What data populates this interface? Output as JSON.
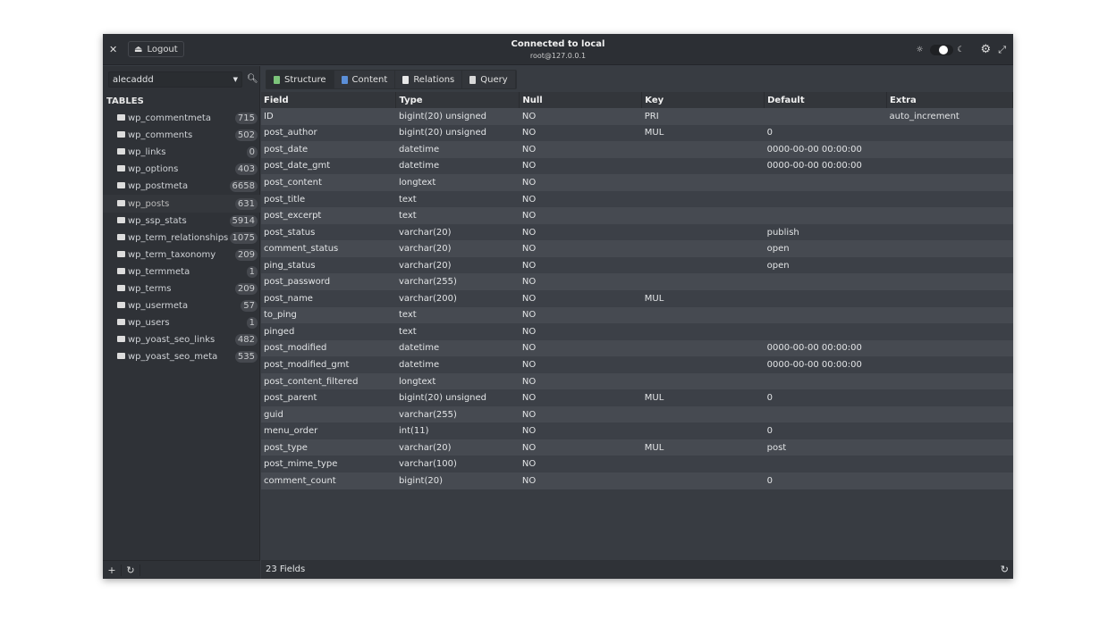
{
  "titlebar": {
    "close_icon": "close-icon",
    "logout_label": "Logout",
    "title": "Connected to local",
    "subtitle": "root@127.0.0.1"
  },
  "sidebar": {
    "database": "alecaddd",
    "tables_heading": "TABLES",
    "selected": "wp_posts",
    "tables": [
      {
        "name": "wp_commentmeta",
        "count": "715"
      },
      {
        "name": "wp_comments",
        "count": "502"
      },
      {
        "name": "wp_links",
        "count": "0"
      },
      {
        "name": "wp_options",
        "count": "403"
      },
      {
        "name": "wp_postmeta",
        "count": "6658"
      },
      {
        "name": "wp_posts",
        "count": "631"
      },
      {
        "name": "wp_ssp_stats",
        "count": "5914"
      },
      {
        "name": "wp_term_relationships",
        "count": "1075"
      },
      {
        "name": "wp_term_taxonomy",
        "count": "209"
      },
      {
        "name": "wp_termmeta",
        "count": "1"
      },
      {
        "name": "wp_terms",
        "count": "209"
      },
      {
        "name": "wp_usermeta",
        "count": "57"
      },
      {
        "name": "wp_users",
        "count": "1"
      },
      {
        "name": "wp_yoast_seo_links",
        "count": "482"
      },
      {
        "name": "wp_yoast_seo_meta",
        "count": "535"
      }
    ]
  },
  "tabs": [
    {
      "label": "Structure",
      "color": "#7cc47a"
    },
    {
      "label": "Content",
      "color": "#5b8fd8"
    },
    {
      "label": "Relations",
      "color": "#e8e8e8"
    },
    {
      "label": "Query",
      "color": "#d8d8d8"
    }
  ],
  "active_tab": "Structure",
  "columns": [
    "Field",
    "Type",
    "Null",
    "Key",
    "Default",
    "Extra"
  ],
  "rows": [
    [
      "ID",
      "bigint(20) unsigned",
      "NO",
      "PRI",
      "",
      "auto_increment"
    ],
    [
      "post_author",
      "bigint(20) unsigned",
      "NO",
      "MUL",
      "0",
      ""
    ],
    [
      "post_date",
      "datetime",
      "NO",
      "",
      "0000-00-00 00:00:00",
      ""
    ],
    [
      "post_date_gmt",
      "datetime",
      "NO",
      "",
      "0000-00-00 00:00:00",
      ""
    ],
    [
      "post_content",
      "longtext",
      "NO",
      "",
      "",
      ""
    ],
    [
      "post_title",
      "text",
      "NO",
      "",
      "",
      ""
    ],
    [
      "post_excerpt",
      "text",
      "NO",
      "",
      "",
      ""
    ],
    [
      "post_status",
      "varchar(20)",
      "NO",
      "",
      "publish",
      ""
    ],
    [
      "comment_status",
      "varchar(20)",
      "NO",
      "",
      "open",
      ""
    ],
    [
      "ping_status",
      "varchar(20)",
      "NO",
      "",
      "open",
      ""
    ],
    [
      "post_password",
      "varchar(255)",
      "NO",
      "",
      "",
      ""
    ],
    [
      "post_name",
      "varchar(200)",
      "NO",
      "MUL",
      "",
      ""
    ],
    [
      "to_ping",
      "text",
      "NO",
      "",
      "",
      ""
    ],
    [
      "pinged",
      "text",
      "NO",
      "",
      "",
      ""
    ],
    [
      "post_modified",
      "datetime",
      "NO",
      "",
      "0000-00-00 00:00:00",
      ""
    ],
    [
      "post_modified_gmt",
      "datetime",
      "NO",
      "",
      "0000-00-00 00:00:00",
      ""
    ],
    [
      "post_content_filtered",
      "longtext",
      "NO",
      "",
      "",
      ""
    ],
    [
      "post_parent",
      "bigint(20) unsigned",
      "NO",
      "MUL",
      "0",
      ""
    ],
    [
      "guid",
      "varchar(255)",
      "NO",
      "",
      "",
      ""
    ],
    [
      "menu_order",
      "int(11)",
      "NO",
      "",
      "0",
      ""
    ],
    [
      "post_type",
      "varchar(20)",
      "NO",
      "MUL",
      "post",
      ""
    ],
    [
      "post_mime_type",
      "varchar(100)",
      "NO",
      "",
      "",
      ""
    ],
    [
      "comment_count",
      "bigint(20)",
      "NO",
      "",
      "0",
      ""
    ]
  ],
  "footer": {
    "status": "23 Fields"
  }
}
